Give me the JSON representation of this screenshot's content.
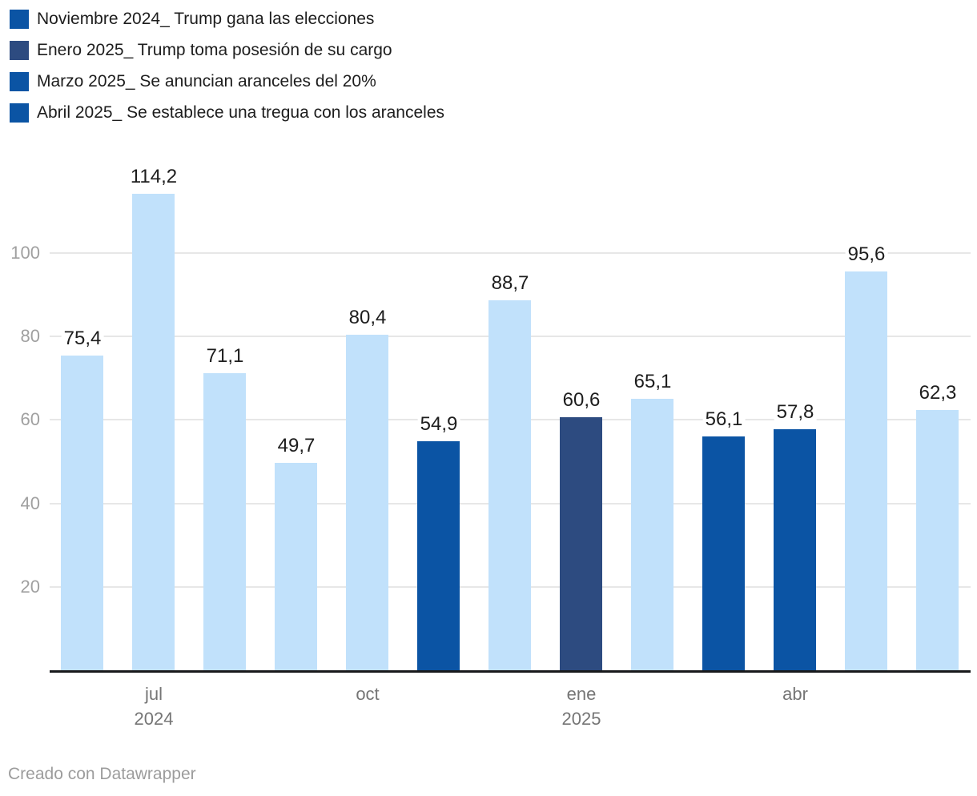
{
  "legend": {
    "items": [
      {
        "label": "Noviembre 2024_ Trump gana las elecciones",
        "color": "#0b54a4"
      },
      {
        "label": "Enero 2025_ Trump toma posesión de su cargo",
        "color": "#2d4b80"
      },
      {
        "label": "Marzo 2025_ Se anuncian aranceles del 20%",
        "color": "#0b54a4"
      },
      {
        "label": "Abril 2025_ Se establece una tregua con los aranceles",
        "color": "#0b54a4"
      }
    ]
  },
  "chart_data": {
    "type": "bar",
    "values": [
      75.4,
      114.2,
      71.1,
      49.7,
      80.4,
      54.9,
      88.7,
      60.6,
      65.1,
      56.1,
      57.8,
      95.6,
      62.3
    ],
    "value_labels": [
      "75,4",
      "114,2",
      "71,1",
      "49,7",
      "80,4",
      "54,9",
      "88,7",
      "60,6",
      "65,1",
      "56,1",
      "57,8",
      "95,6",
      "62,3"
    ],
    "bar_color_keys": [
      "light",
      "light",
      "light",
      "light",
      "light",
      "dark",
      "light",
      "navy",
      "light",
      "dark",
      "dark",
      "light",
      "light"
    ],
    "colors": {
      "light": "#c1e1fb",
      "dark": "#0b54a4",
      "navy": "#2d4b80"
    },
    "y_ticks": [
      20,
      40,
      60,
      80,
      100
    ],
    "x_ticks": [
      {
        "bar_index": 1,
        "lines": [
          "jul",
          "2024"
        ]
      },
      {
        "bar_index": 4,
        "lines": [
          "oct"
        ]
      },
      {
        "bar_index": 7,
        "lines": [
          "ene",
          "2025"
        ]
      },
      {
        "bar_index": 10,
        "lines": [
          "abr"
        ]
      }
    ],
    "ylim": [
      0,
      120
    ],
    "grid": true,
    "legend_position": "top-left"
  },
  "footer": {
    "text": "Creado con Datawrapper"
  }
}
